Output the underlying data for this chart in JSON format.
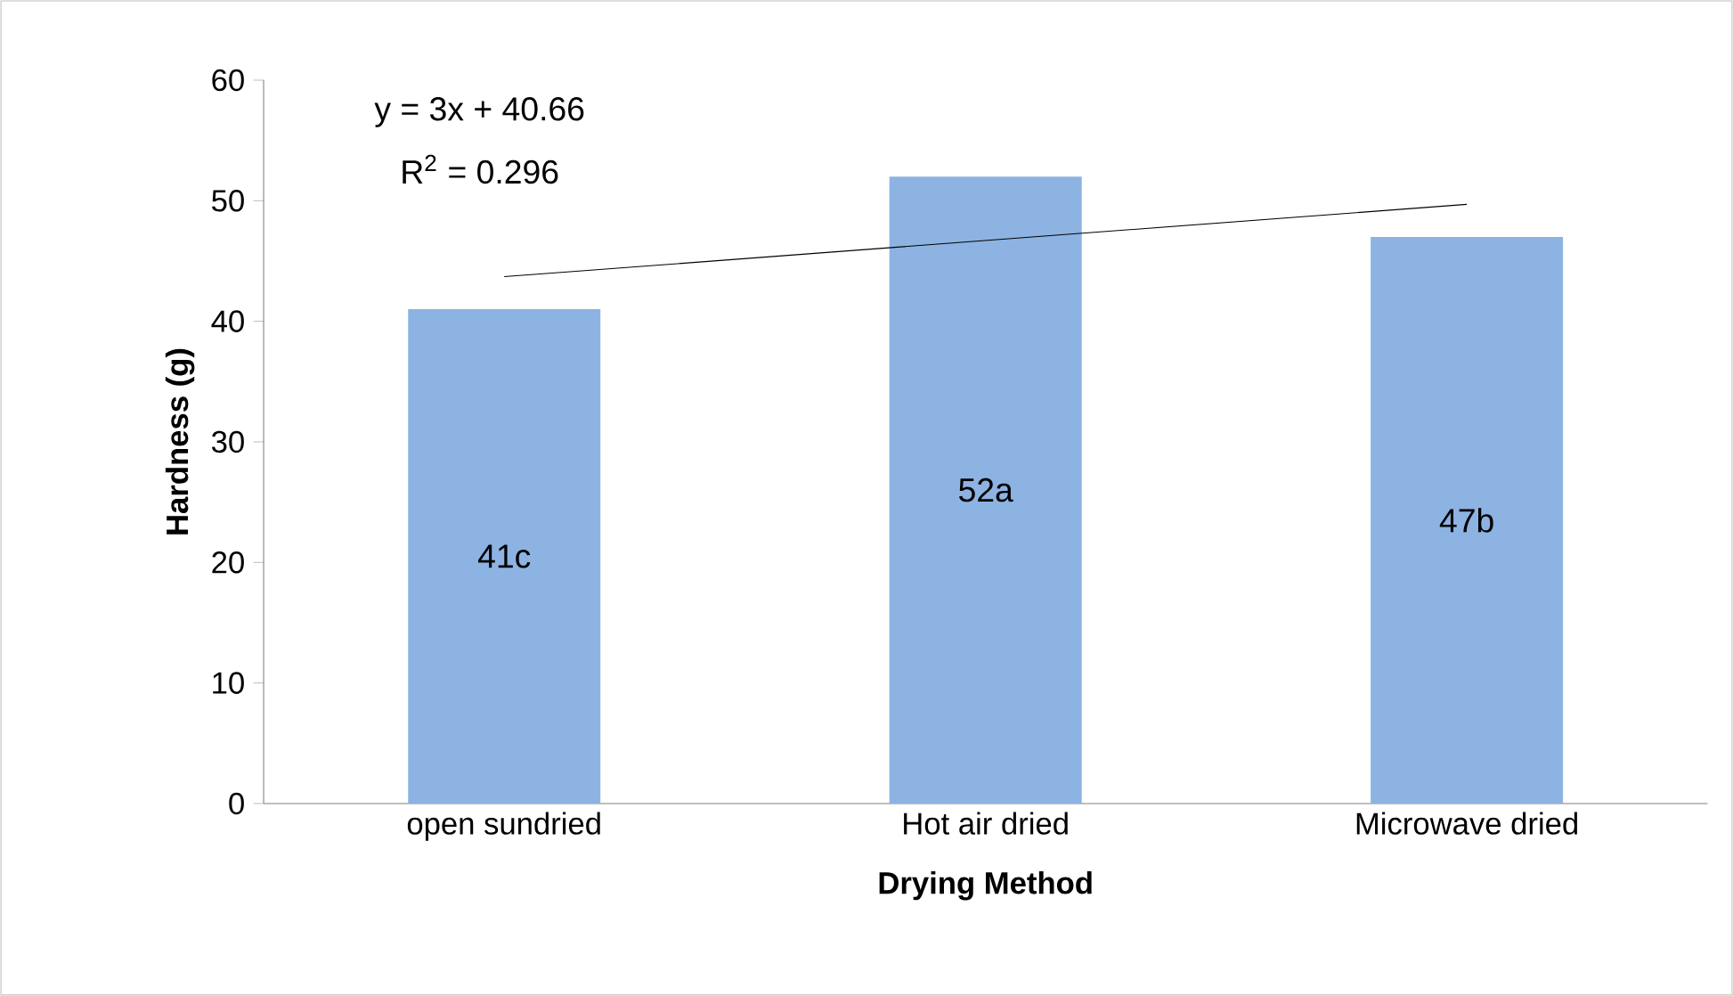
{
  "chart_data": {
    "type": "bar",
    "xlabel": "Drying Method",
    "ylabel": "Hardness (g)",
    "categories": [
      "open sundried",
      "Hot air dried",
      "Microwave dried"
    ],
    "series": [
      {
        "color": "#8db3e2",
        "values": [
          41,
          52,
          47
        ],
        "value_labels": [
          "41c",
          "52a",
          "47b"
        ]
      },
      {
        "type": "line",
        "color": "#000000",
        "values": [
          43.7,
          46.7,
          49.7
        ]
      }
    ],
    "annotations": [
      "y = 3x + 40.66",
      "R$^{2}$ = 0.296"
    ],
    "ylim": [
      0,
      60
    ],
    "yticks": [
      0,
      10,
      20,
      30,
      40,
      50,
      60
    ],
    "marker": "none"
  }
}
